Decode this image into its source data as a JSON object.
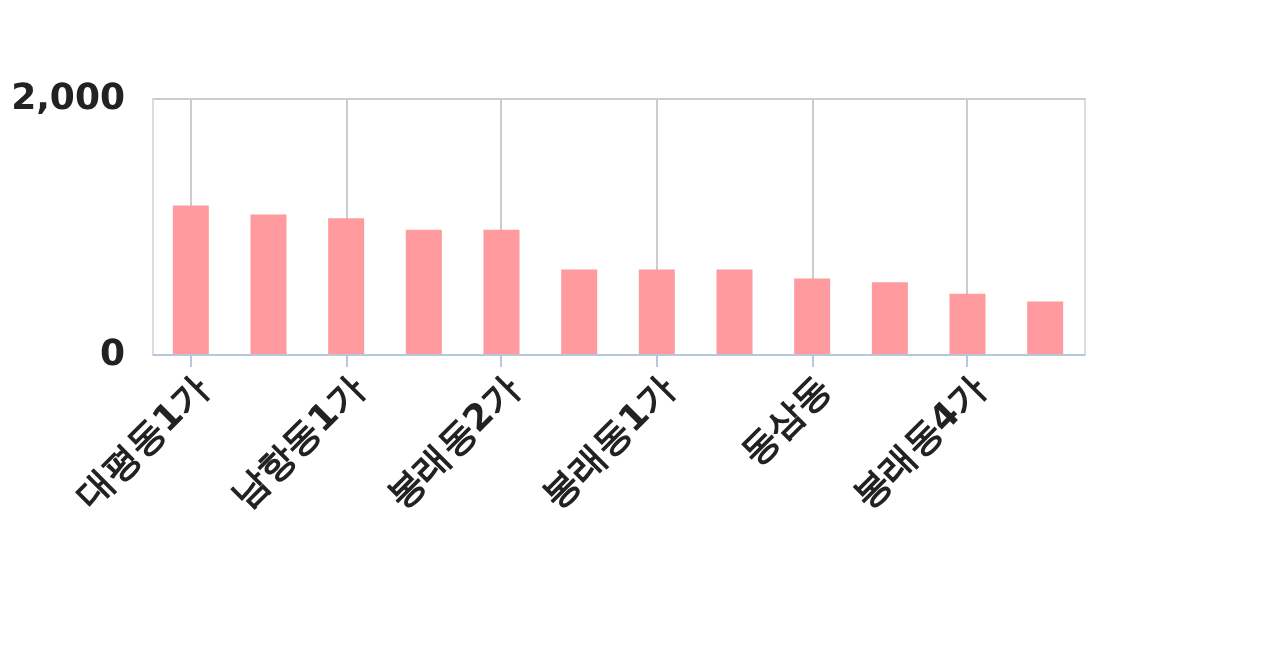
{
  "chart_data": {
    "type": "bar",
    "categories": [
      "대평동1가",
      null,
      "남항동1가",
      null,
      "봉래동2가",
      null,
      "봉래동1가",
      null,
      "동삼동",
      null,
      "봉래동4가",
      null
    ],
    "values": [
      1160,
      1090,
      1060,
      970,
      970,
      660,
      660,
      660,
      590,
      560,
      470,
      410
    ],
    "color": "#ff9a9e",
    "ylim": [
      0,
      2000
    ],
    "yticks": [
      0,
      {
        "value": 2000,
        "label": "2,000"
      }
    ],
    "grid": true
  }
}
